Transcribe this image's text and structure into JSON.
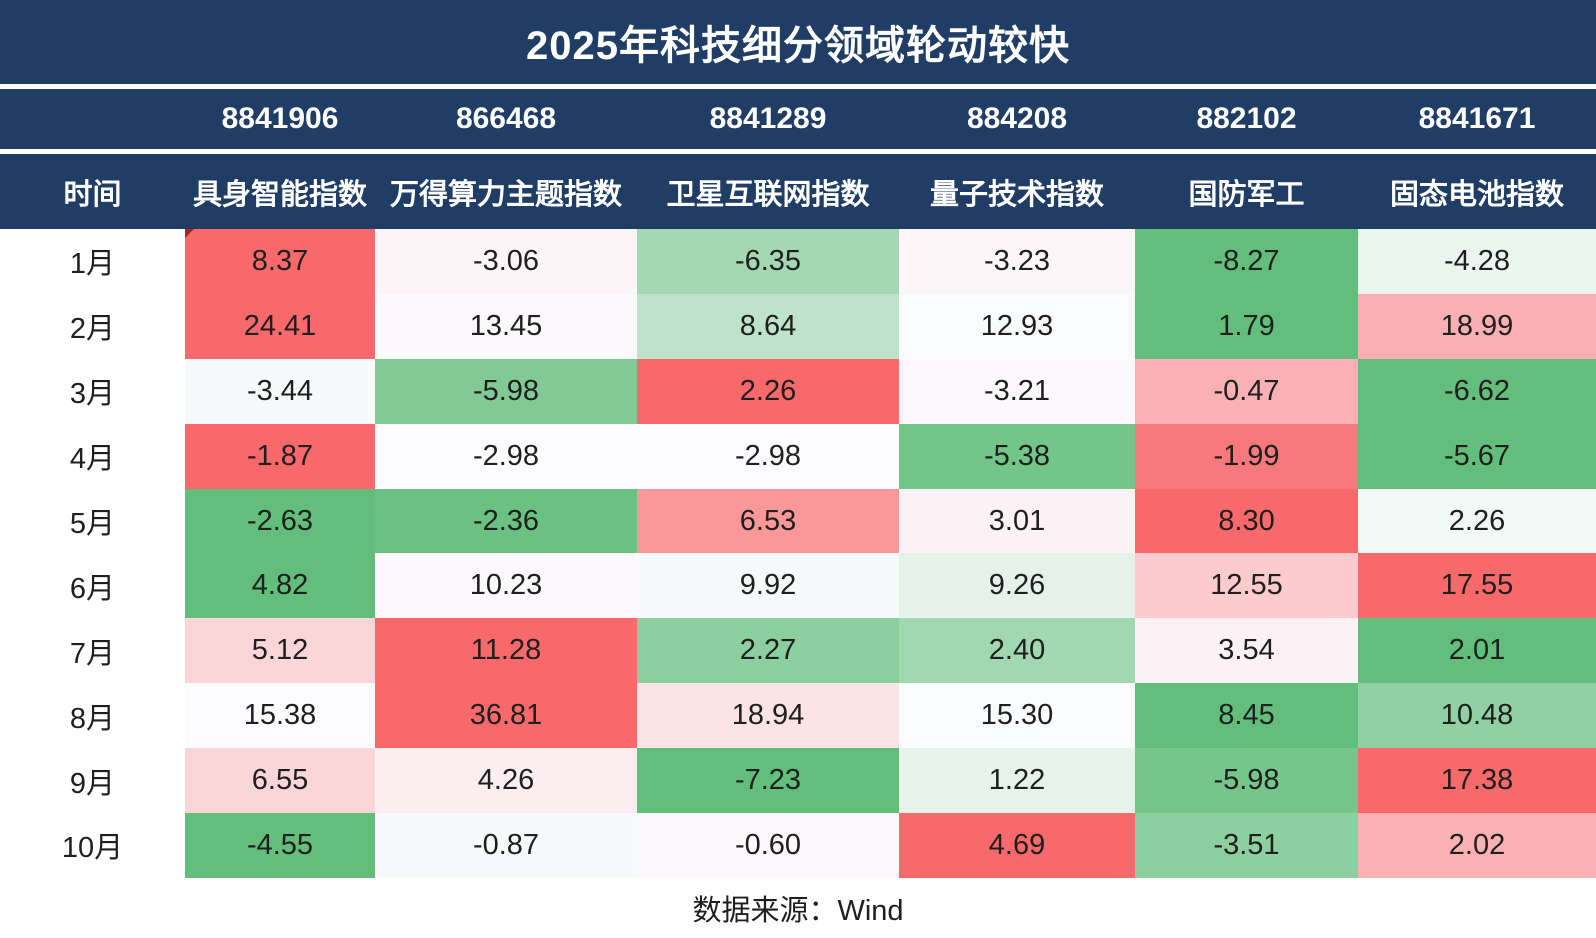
{
  "title": "2025年科技细分领域轮动较快",
  "table": {
    "time_header": "时间"
  },
  "footer": {
    "source": "数据来源：Wind"
  },
  "colors": {
    "header_navy": "#203D66",
    "separator_white": "#FFFFFF",
    "scale_max_red": "#F8696B",
    "scale_mid_white": "#FCFCFF",
    "scale_min_green": "#63BE7B",
    "corner_marker_dark_red": "#9E2B25",
    "cell_text": "#1F1F1F"
  },
  "chart_data": {
    "type": "heatmap",
    "title": "2025年科技细分领域轮动较快",
    "categories": [
      "1月",
      "2月",
      "3月",
      "4月",
      "5月",
      "6月",
      "7月",
      "8月",
      "9月",
      "10月"
    ],
    "series": [
      {
        "code": "8841906",
        "name": "具身智能指数",
        "values": [
          8.37,
          24.41,
          -3.44,
          -1.87,
          -2.63,
          4.82,
          5.12,
          15.38,
          6.55,
          -4.55
        ]
      },
      {
        "code": "866468",
        "name": "万得算力主题指数",
        "values": [
          -3.06,
          13.45,
          -5.98,
          -2.98,
          -2.36,
          10.23,
          11.28,
          36.81,
          4.26,
          -0.87
        ]
      },
      {
        "code": "8841289",
        "name": "卫星互联网指数",
        "values": [
          -6.35,
          8.64,
          2.26,
          -2.98,
          6.53,
          9.92,
          2.27,
          18.94,
          -7.23,
          -0.6
        ]
      },
      {
        "code": "884208",
        "name": "量子技术指数",
        "values": [
          -3.23,
          12.93,
          -3.21,
          -5.38,
          3.01,
          9.26,
          2.4,
          15.3,
          1.22,
          4.69
        ]
      },
      {
        "code": "882102",
        "name": "国防军工",
        "values": [
          -8.27,
          1.79,
          -0.47,
          -1.99,
          8.3,
          12.55,
          3.54,
          8.45,
          -5.98,
          -3.51
        ]
      },
      {
        "code": "8841671",
        "name": "固态电池指数",
        "values": [
          -4.28,
          18.99,
          -6.62,
          -5.67,
          2.26,
          17.55,
          2.01,
          10.48,
          17.38,
          2.02
        ]
      }
    ],
    "value_format": "two_decimals",
    "color_scale": {
      "scope": "per_row",
      "min_color": "#63BE7B",
      "mid_color": "#FCFCFF",
      "max_color": "#F8696B",
      "midpoint": "row_median"
    },
    "legend_position": "none",
    "grid": false
  }
}
